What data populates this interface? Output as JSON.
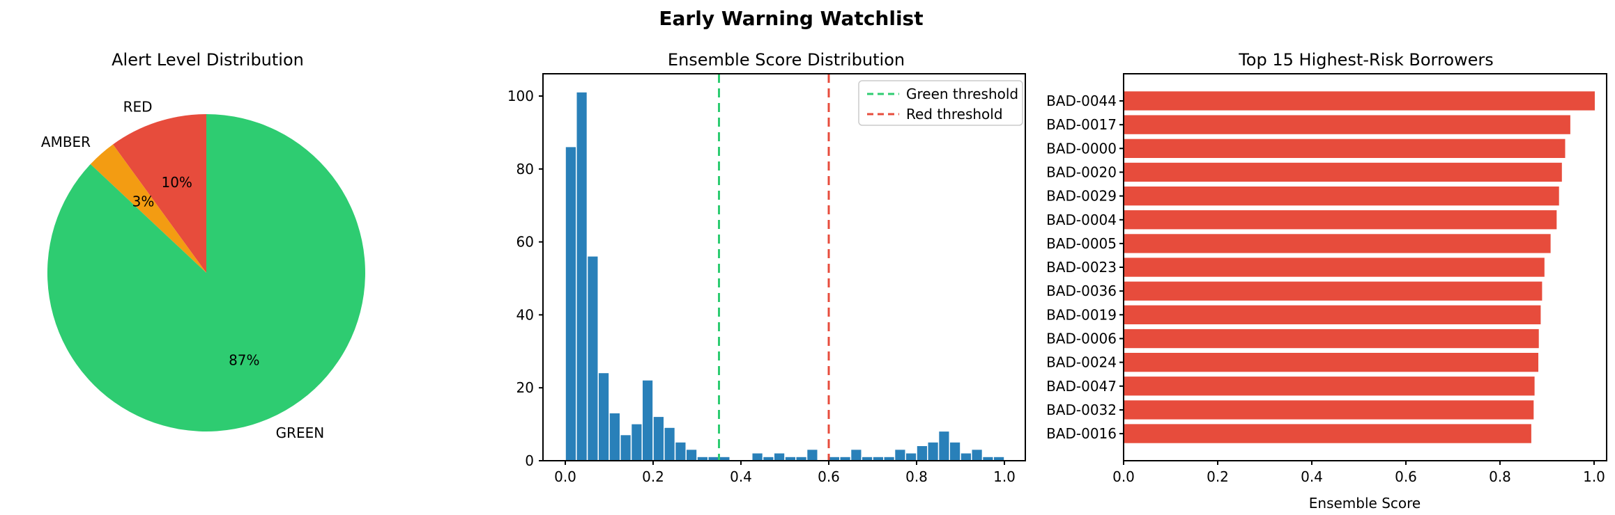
{
  "figure": {
    "title": "Early Warning Watchlist"
  },
  "chart_data": [
    {
      "type": "pie",
      "title": "Alert Level Distribution",
      "labels": [
        "RED",
        "AMBER",
        "GREEN"
      ],
      "values": [
        10,
        3,
        87
      ],
      "pct_labels": [
        "10%",
        "3%",
        "87%"
      ],
      "colors": [
        "#e74c3c",
        "#f39c12",
        "#2ecc71"
      ],
      "start_angle": 90,
      "counterclockwise": true
    },
    {
      "type": "histogram",
      "title": "Ensemble Score Distribution",
      "bar_color": "#2980b9",
      "bin_start": 0.0,
      "bin_width": 0.025,
      "counts": [
        86,
        101,
        56,
        24,
        13,
        7,
        10,
        22,
        12,
        9,
        5,
        3,
        1,
        1,
        1,
        0,
        0,
        2,
        1,
        2,
        1,
        1,
        3,
        0,
        1,
        1,
        3,
        1,
        1,
        1,
        3,
        2,
        4,
        5,
        8,
        5,
        2,
        3,
        1,
        1
      ],
      "xlim": [
        -0.05,
        1.05
      ],
      "ylim": [
        0,
        106
      ],
      "xticks": [
        {
          "value": 0.0,
          "label": "0.0"
        },
        {
          "value": 0.2,
          "label": "0.2"
        },
        {
          "value": 0.4,
          "label": "0.4"
        },
        {
          "value": 0.6,
          "label": "0.6"
        },
        {
          "value": 0.8,
          "label": "0.8"
        },
        {
          "value": 1.0,
          "label": "1.0"
        }
      ],
      "yticks": [
        {
          "value": 0,
          "label": "0"
        },
        {
          "value": 20,
          "label": "20"
        },
        {
          "value": 40,
          "label": "40"
        },
        {
          "value": 60,
          "label": "60"
        },
        {
          "value": 80,
          "label": "80"
        },
        {
          "value": 100,
          "label": "100"
        }
      ],
      "vlines": [
        {
          "x": 0.35,
          "color": "#2ecc71",
          "style": "dashed",
          "label": "Green threshold"
        },
        {
          "x": 0.6,
          "color": "#e74c3c",
          "style": "dashed",
          "label": "Red threshold"
        }
      ],
      "legend": {
        "position": "upper right",
        "entries": [
          {
            "label": "Green threshold",
            "color": "#2ecc71",
            "style": "dashed"
          },
          {
            "label": "Red threshold",
            "color": "#e74c3c",
            "style": "dashed"
          }
        ]
      }
    },
    {
      "type": "bar",
      "orientation": "horizontal",
      "title": "Top 15 Highest-Risk Borrowers",
      "xlabel": "Ensemble Score",
      "color": "#e74c3c",
      "categories": [
        "BAD-0044",
        "BAD-0017",
        "BAD-0000",
        "BAD-0020",
        "BAD-0029",
        "BAD-0004",
        "BAD-0005",
        "BAD-0023",
        "BAD-0036",
        "BAD-0019",
        "BAD-0006",
        "BAD-0024",
        "BAD-0047",
        "BAD-0032",
        "BAD-0016"
      ],
      "values": [
        1.0,
        0.948,
        0.937,
        0.93,
        0.924,
        0.919,
        0.906,
        0.893,
        0.888,
        0.885,
        0.881,
        0.88,
        0.872,
        0.87,
        0.865
      ],
      "xlim": [
        0,
        1.027
      ],
      "xticks": [
        {
          "value": 0.0,
          "label": "0.0"
        },
        {
          "value": 0.2,
          "label": "0.2"
        },
        {
          "value": 0.4,
          "label": "0.4"
        },
        {
          "value": 0.6,
          "label": "0.6"
        },
        {
          "value": 0.8,
          "label": "0.8"
        },
        {
          "value": 1.0,
          "label": "1.0"
        }
      ]
    }
  ]
}
